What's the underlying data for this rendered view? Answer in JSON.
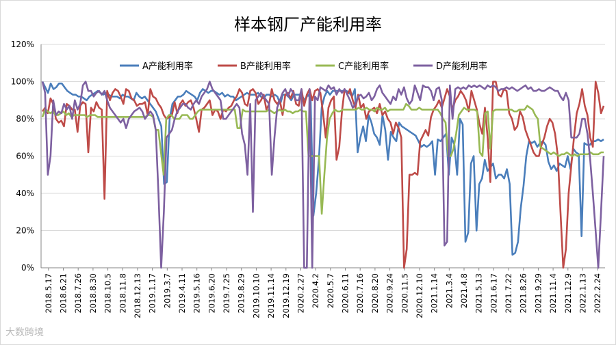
{
  "watermark": "大数跨境",
  "chart_data": {
    "type": "line",
    "title": "样本钢厂产能利用率",
    "xlabel": "",
    "ylabel": "",
    "ylim": [
      0,
      1.2
    ],
    "y_ticks": [
      "0%",
      "20%",
      "40%",
      "60%",
      "80%",
      "100%",
      "120%"
    ],
    "x_tick_labels": [
      "2018.5.17",
      "2018.6.21",
      "2018.7.26",
      "2018.8.30",
      "2018.10.5",
      "2018.11.8",
      "2018.12.13",
      "2019.1.17",
      "2019.3.7",
      "2019.4.11",
      "2019.5.16",
      "2019.6.20",
      "2019.7.25",
      "2019.8.29",
      "2019.10.10",
      "2019.11.14",
      "2019.12.19",
      "2020.2.27",
      "2020.4.2",
      "2020.5.7",
      "2020.6.11",
      "2020.7.16",
      "2020.8.20",
      "2020.9.24",
      "2020.11.5",
      "2020.12.10",
      "2021.1.14",
      "2021.3.4",
      "2021.4.8",
      "2021.5.13",
      "2021.6.17",
      "2021.7.22",
      "2021.8.26",
      "2021.9.29",
      "2021.11.4",
      "2021.12.9",
      "2022.1.13",
      "2022.2.24"
    ],
    "legend_position": "top",
    "grid": "horizontal",
    "colors": {
      "A": "#4a7ebb",
      "B": "#be4b48",
      "C": "#98b954",
      "D": "#7d60a0"
    },
    "series": [
      {
        "name": "A产能利用率",
        "key": "A",
        "values": [
          1.0,
          0.97,
          0.94,
          0.99,
          0.96,
          0.97,
          0.99,
          0.99,
          0.97,
          0.95,
          0.94,
          0.93,
          0.93,
          0.92,
          0.92,
          0.91,
          0.9,
          0.92,
          0.93,
          0.94,
          0.95,
          0.94,
          0.93,
          0.94,
          0.93,
          0.92,
          0.92,
          0.92,
          0.91,
          0.93,
          0.92,
          0.92,
          0.91,
          0.9,
          0.94,
          0.92,
          0.91,
          0.92,
          0.9,
          0.88,
          0.86,
          0.84,
          0.8,
          0.76,
          0.45,
          0.46,
          0.8,
          0.88,
          0.9,
          0.92,
          0.92,
          0.93,
          0.95,
          0.94,
          0.93,
          0.92,
          0.9,
          0.94,
          0.96,
          0.95,
          0.94,
          0.95,
          0.95,
          0.94,
          0.93,
          0.94,
          0.92,
          0.93,
          0.92,
          0.92,
          0.9,
          0.91,
          0.92,
          0.93,
          0.94,
          0.93,
          0.93,
          0.93,
          0.94,
          0.92,
          0.91,
          0.93,
          0.93,
          0.92,
          0.93,
          0.92,
          0.88,
          0.93,
          0.93,
          0.92,
          0.9,
          0.93,
          0.93,
          0.93,
          0.92,
          0.9,
          0.93,
          0.91,
          0.28,
          0.4,
          0.58,
          0.86,
          0.92,
          0.95,
          0.93,
          0.95,
          0.95,
          0.95,
          0.95,
          0.95,
          0.95,
          0.94,
          0.92,
          0.96,
          0.62,
          0.7,
          0.76,
          0.68,
          0.82,
          0.78,
          0.72,
          0.7,
          0.66,
          0.82,
          0.74,
          0.58,
          0.73,
          0.7,
          0.68,
          0.78,
          0.76,
          0.75,
          0.74,
          0.73,
          0.72,
          0.71,
          0.68,
          0.65,
          0.66,
          0.65,
          0.66,
          0.68,
          0.5,
          0.69,
          0.68,
          0.7,
          0.72,
          0.5,
          0.7,
          0.66,
          0.5,
          0.8,
          0.77,
          0.14,
          0.19,
          0.56,
          0.6,
          0.2,
          0.45,
          0.48,
          0.58,
          0.52,
          0.54,
          0.56,
          0.48,
          0.5,
          0.5,
          0.48,
          0.53,
          0.45,
          0.07,
          0.08,
          0.14,
          0.32,
          0.44,
          0.6,
          0.68,
          0.67,
          0.68,
          0.65,
          0.67,
          0.68,
          0.66,
          0.57,
          0.53,
          0.55,
          0.52,
          0.56,
          0.55,
          0.54,
          0.6,
          0.53,
          0.64,
          0.62,
          0.61,
          0.17,
          0.67,
          0.66,
          0.66,
          0.68,
          0.68,
          0.69,
          0.68,
          0.69
        ]
      },
      {
        "name": "B产能利用率",
        "key": "B",
        "values": [
          0.84,
          0.86,
          0.83,
          0.91,
          0.88,
          0.8,
          0.78,
          0.79,
          0.76,
          0.88,
          0.87,
          0.85,
          0.85,
          0.73,
          0.87,
          0.89,
          0.88,
          0.62,
          0.86,
          0.84,
          0.89,
          0.86,
          0.85,
          0.37,
          0.95,
          0.9,
          0.94,
          0.96,
          0.95,
          0.92,
          0.88,
          0.96,
          0.95,
          0.91,
          0.9,
          0.87,
          0.88,
          0.88,
          0.89,
          0.82,
          0.96,
          0.92,
          0.91,
          0.88,
          0.86,
          0.82,
          0.8,
          0.81,
          0.82,
          0.89,
          0.83,
          0.88,
          0.9,
          0.87,
          0.89,
          0.9,
          0.86,
          0.8,
          0.73,
          0.85,
          0.86,
          0.88,
          0.9,
          0.82,
          0.85,
          0.84,
          0.8,
          0.85,
          0.84,
          0.86,
          0.87,
          0.9,
          0.92,
          0.96,
          0.94,
          0.88,
          0.87,
          0.95,
          0.96,
          0.94,
          0.88,
          0.9,
          0.93,
          0.85,
          0.88,
          0.96,
          0.9,
          0.88,
          0.9,
          0.82,
          0.93,
          0.94,
          0.91,
          0.95,
          0.88,
          0.87,
          0.96,
          0.87,
          0.93,
          0.96,
          0.9,
          0.95,
          0.96,
          0.94,
          0.83,
          0.7,
          0.86,
          0.9,
          0.92,
          0.58,
          0.65,
          0.84,
          0.96,
          0.93,
          0.96,
          0.9,
          0.86,
          0.93,
          0.86,
          0.88,
          0.8,
          0.84,
          0.85,
          0.86,
          0.83,
          0.88,
          0.82,
          0.84,
          0.8,
          0.78,
          0.72,
          0.78,
          0.75,
          0.7,
          0.0,
          0.1,
          0.5,
          0.5,
          0.51,
          0.5,
          0.68,
          0.71,
          0.74,
          0.71,
          0.81,
          0.85,
          0.87,
          0.9,
          0.86,
          0.91,
          0.96,
          0.92,
          0.85,
          0.9,
          0.92,
          0.95,
          0.93,
          0.9,
          0.84,
          0.95,
          0.9,
          0.85,
          0.77,
          0.72,
          0.86,
          0.7,
          0.46,
          1.0,
          1.0,
          0.93,
          0.92,
          0.96,
          0.95,
          0.83,
          0.8,
          0.74,
          0.76,
          0.84,
          0.81,
          0.74,
          0.7,
          0.66,
          0.62,
          0.6,
          0.6,
          0.66,
          0.7,
          0.76,
          0.8,
          0.78,
          0.72,
          0.6,
          0.3,
          0.0,
          0.1,
          0.4,
          0.55,
          0.7,
          0.83,
          0.88,
          0.96,
          0.87,
          0.82,
          0.7,
          0.65,
          1.0,
          0.94,
          0.83,
          0.87
        ]
      },
      {
        "name": "C产能利用率",
        "key": "C",
        "values": [
          0.81,
          0.85,
          0.84,
          0.83,
          0.84,
          0.82,
          0.82,
          0.83,
          0.84,
          0.82,
          0.83,
          0.81,
          0.82,
          0.82,
          0.82,
          0.82,
          0.82,
          0.81,
          0.82,
          0.82,
          0.82,
          0.81,
          0.81,
          0.81,
          0.81,
          0.81,
          0.81,
          0.81,
          0.81,
          0.81,
          0.81,
          0.81,
          0.81,
          0.81,
          0.81,
          0.81,
          0.81,
          0.81,
          0.81,
          0.81,
          0.82,
          0.82,
          0.81,
          0.74,
          0.74,
          0.62,
          0.5,
          0.8,
          0.82,
          0.82,
          0.8,
          0.8,
          0.8,
          0.82,
          0.82,
          0.82,
          0.8,
          0.8,
          0.82,
          0.84,
          0.85,
          0.85,
          0.85,
          0.85,
          0.85,
          0.85,
          0.85,
          0.85,
          0.85,
          0.85,
          0.85,
          0.85,
          0.85,
          0.85,
          0.75,
          0.75,
          0.85,
          0.84,
          0.84,
          0.84,
          0.84,
          0.84,
          0.84,
          0.84,
          0.84,
          0.84,
          0.85,
          0.84,
          0.83,
          0.84,
          0.85,
          0.84,
          0.85,
          0.84,
          0.84,
          0.83,
          0.84,
          0.84,
          0.85,
          0.84,
          0.84,
          0.6,
          0.6,
          0.6,
          0.6,
          0.6,
          0.29,
          0.5,
          0.7,
          0.8,
          0.83,
          0.85,
          0.84,
          0.84,
          0.85,
          0.85,
          0.85,
          0.85,
          0.85,
          0.85,
          0.86,
          0.85,
          0.85,
          0.86,
          0.85,
          0.85,
          0.84,
          0.86,
          0.85,
          0.85,
          0.86,
          0.84,
          0.85,
          0.85,
          0.85,
          0.85,
          0.85,
          0.85,
          0.88,
          0.87,
          0.85,
          0.85,
          0.85,
          0.86,
          0.85,
          0.85,
          0.85,
          0.85,
          0.85,
          0.85,
          0.85,
          0.83,
          0.8,
          0.78,
          0.6,
          0.6,
          0.64,
          0.72,
          0.82,
          0.84,
          0.86,
          0.85,
          0.85,
          0.85,
          0.85,
          0.84,
          0.62,
          0.6,
          0.83,
          0.84,
          0.64,
          0.84,
          0.85,
          0.85,
          0.85,
          0.85,
          0.85,
          0.85,
          0.85,
          0.84,
          0.84,
          0.85,
          0.85,
          0.85,
          0.87,
          0.86,
          0.85,
          0.82,
          0.8,
          0.65,
          0.64,
          0.63,
          0.62,
          0.61,
          0.62,
          0.61,
          0.6,
          0.61,
          0.61,
          0.62,
          0.61,
          0.6,
          0.61,
          0.6,
          0.61,
          0.61,
          0.61,
          0.61,
          0.62,
          0.61,
          0.61,
          0.61,
          0.62,
          0.62
        ]
      },
      {
        "name": "D产能利用率",
        "key": "D",
        "values": [
          1.0,
          0.94,
          0.5,
          0.6,
          0.9,
          0.82,
          0.84,
          0.83,
          0.88,
          0.85,
          0.87,
          0.8,
          0.9,
          0.85,
          0.88,
          0.98,
          1.0,
          0.95,
          0.95,
          0.92,
          0.94,
          0.95,
          0.93,
          0.95,
          0.9,
          0.86,
          0.84,
          0.82,
          0.8,
          0.78,
          0.8,
          0.75,
          0.8,
          0.82,
          0.84,
          0.85,
          0.86,
          0.84,
          0.8,
          0.82,
          0.84,
          0.82,
          0.74,
          0.4,
          0.0,
          0.3,
          0.7,
          0.72,
          0.74,
          0.8,
          0.84,
          0.86,
          0.88,
          0.88,
          0.86,
          0.85,
          0.88,
          0.9,
          0.88,
          0.92,
          0.94,
          0.96,
          1.0,
          0.96,
          0.94,
          0.92,
          0.9,
          0.8,
          0.8,
          0.82,
          0.84,
          0.86,
          0.88,
          0.86,
          0.72,
          0.66,
          0.5,
          0.88,
          0.3,
          0.9,
          0.92,
          0.94,
          0.92,
          0.9,
          0.88,
          0.5,
          0.7,
          0.86,
          0.9,
          0.94,
          0.96,
          0.92,
          0.96,
          0.94,
          0.9,
          0.9,
          0.96,
          0.0,
          0.0,
          0.96,
          0.0,
          0.92,
          0.9,
          0.97,
          0.96,
          0.95,
          0.98,
          0.96,
          0.97,
          0.93,
          0.96,
          0.94,
          0.96,
          0.93,
          0.9,
          0.86,
          0.88,
          0.92,
          0.93,
          0.91,
          0.92,
          0.94,
          0.9,
          0.92,
          0.96,
          0.98,
          0.94,
          0.92,
          0.9,
          0.88,
          0.92,
          0.9,
          0.96,
          0.93,
          0.97,
          0.91,
          0.88,
          0.9,
          0.98,
          0.94,
          0.9,
          0.98,
          0.97,
          0.97,
          0.95,
          0.9,
          0.96,
          0.97,
          0.9,
          0.12,
          0.14,
          0.98,
          0.8,
          0.96,
          0.97,
          0.96,
          0.97,
          0.96,
          0.98,
          0.97,
          0.98,
          0.97,
          0.98,
          0.97,
          0.96,
          0.98,
          0.97,
          0.98,
          0.97,
          0.95,
          0.96,
          0.96,
          0.97,
          0.96,
          0.97,
          0.96,
          0.95,
          0.96,
          0.97,
          0.98,
          0.96,
          0.97,
          0.95,
          0.95,
          0.96,
          0.95,
          0.95,
          0.96,
          0.97,
          0.96,
          0.95,
          0.95,
          0.92,
          0.9,
          0.94,
          0.9,
          0.7,
          0.7,
          0.7,
          0.72,
          0.8,
          0.8,
          0.72,
          0.58,
          0.4,
          0.2,
          0.0,
          0.3,
          0.6
        ]
      }
    ]
  }
}
